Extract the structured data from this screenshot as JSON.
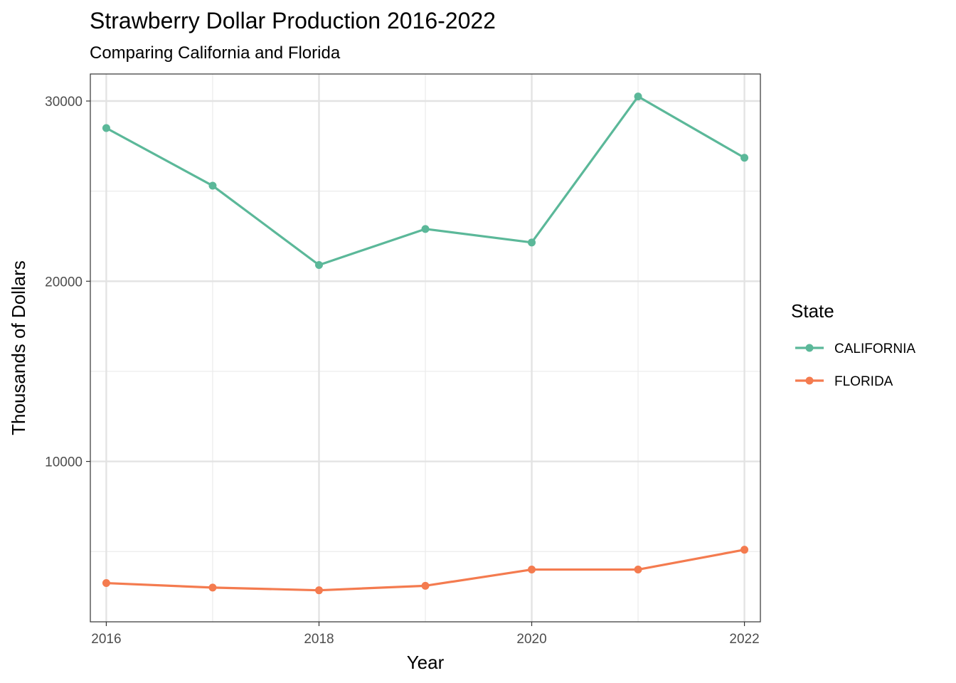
{
  "chart_data": {
    "type": "line",
    "title": "Strawberry Dollar Production 2016-2022",
    "subtitle": "Comparing California and Florida",
    "xlabel": "Year",
    "ylabel": "Thousands of Dollars",
    "x": [
      2016,
      2017,
      2018,
      2019,
      2020,
      2021,
      2022
    ],
    "xlim": [
      2015.85,
      2022.15
    ],
    "ylim": [
      1100,
      31500
    ],
    "x_ticks": [
      2016,
      2018,
      2020,
      2022
    ],
    "x_tick_labels": [
      "2016",
      "2018",
      "2020",
      "2022"
    ],
    "y_ticks": [
      10000,
      20000,
      30000
    ],
    "y_tick_labels": [
      "10000",
      "20000",
      "30000"
    ],
    "y_minor_ticks": [
      5000,
      15000,
      25000
    ],
    "x_minor_ticks": [
      2017,
      2019,
      2021
    ],
    "grid": true,
    "legend": {
      "title": "State",
      "position": "right"
    },
    "series": [
      {
        "name": "CALIFORNIA",
        "color": "#5BB899",
        "values": [
          28500,
          25300,
          20900,
          22900,
          22150,
          30250,
          26850
        ]
      },
      {
        "name": "FLORIDA",
        "color": "#F47B4F",
        "values": [
          3250,
          3000,
          2850,
          3100,
          4000,
          4000,
          5100
        ]
      }
    ]
  }
}
